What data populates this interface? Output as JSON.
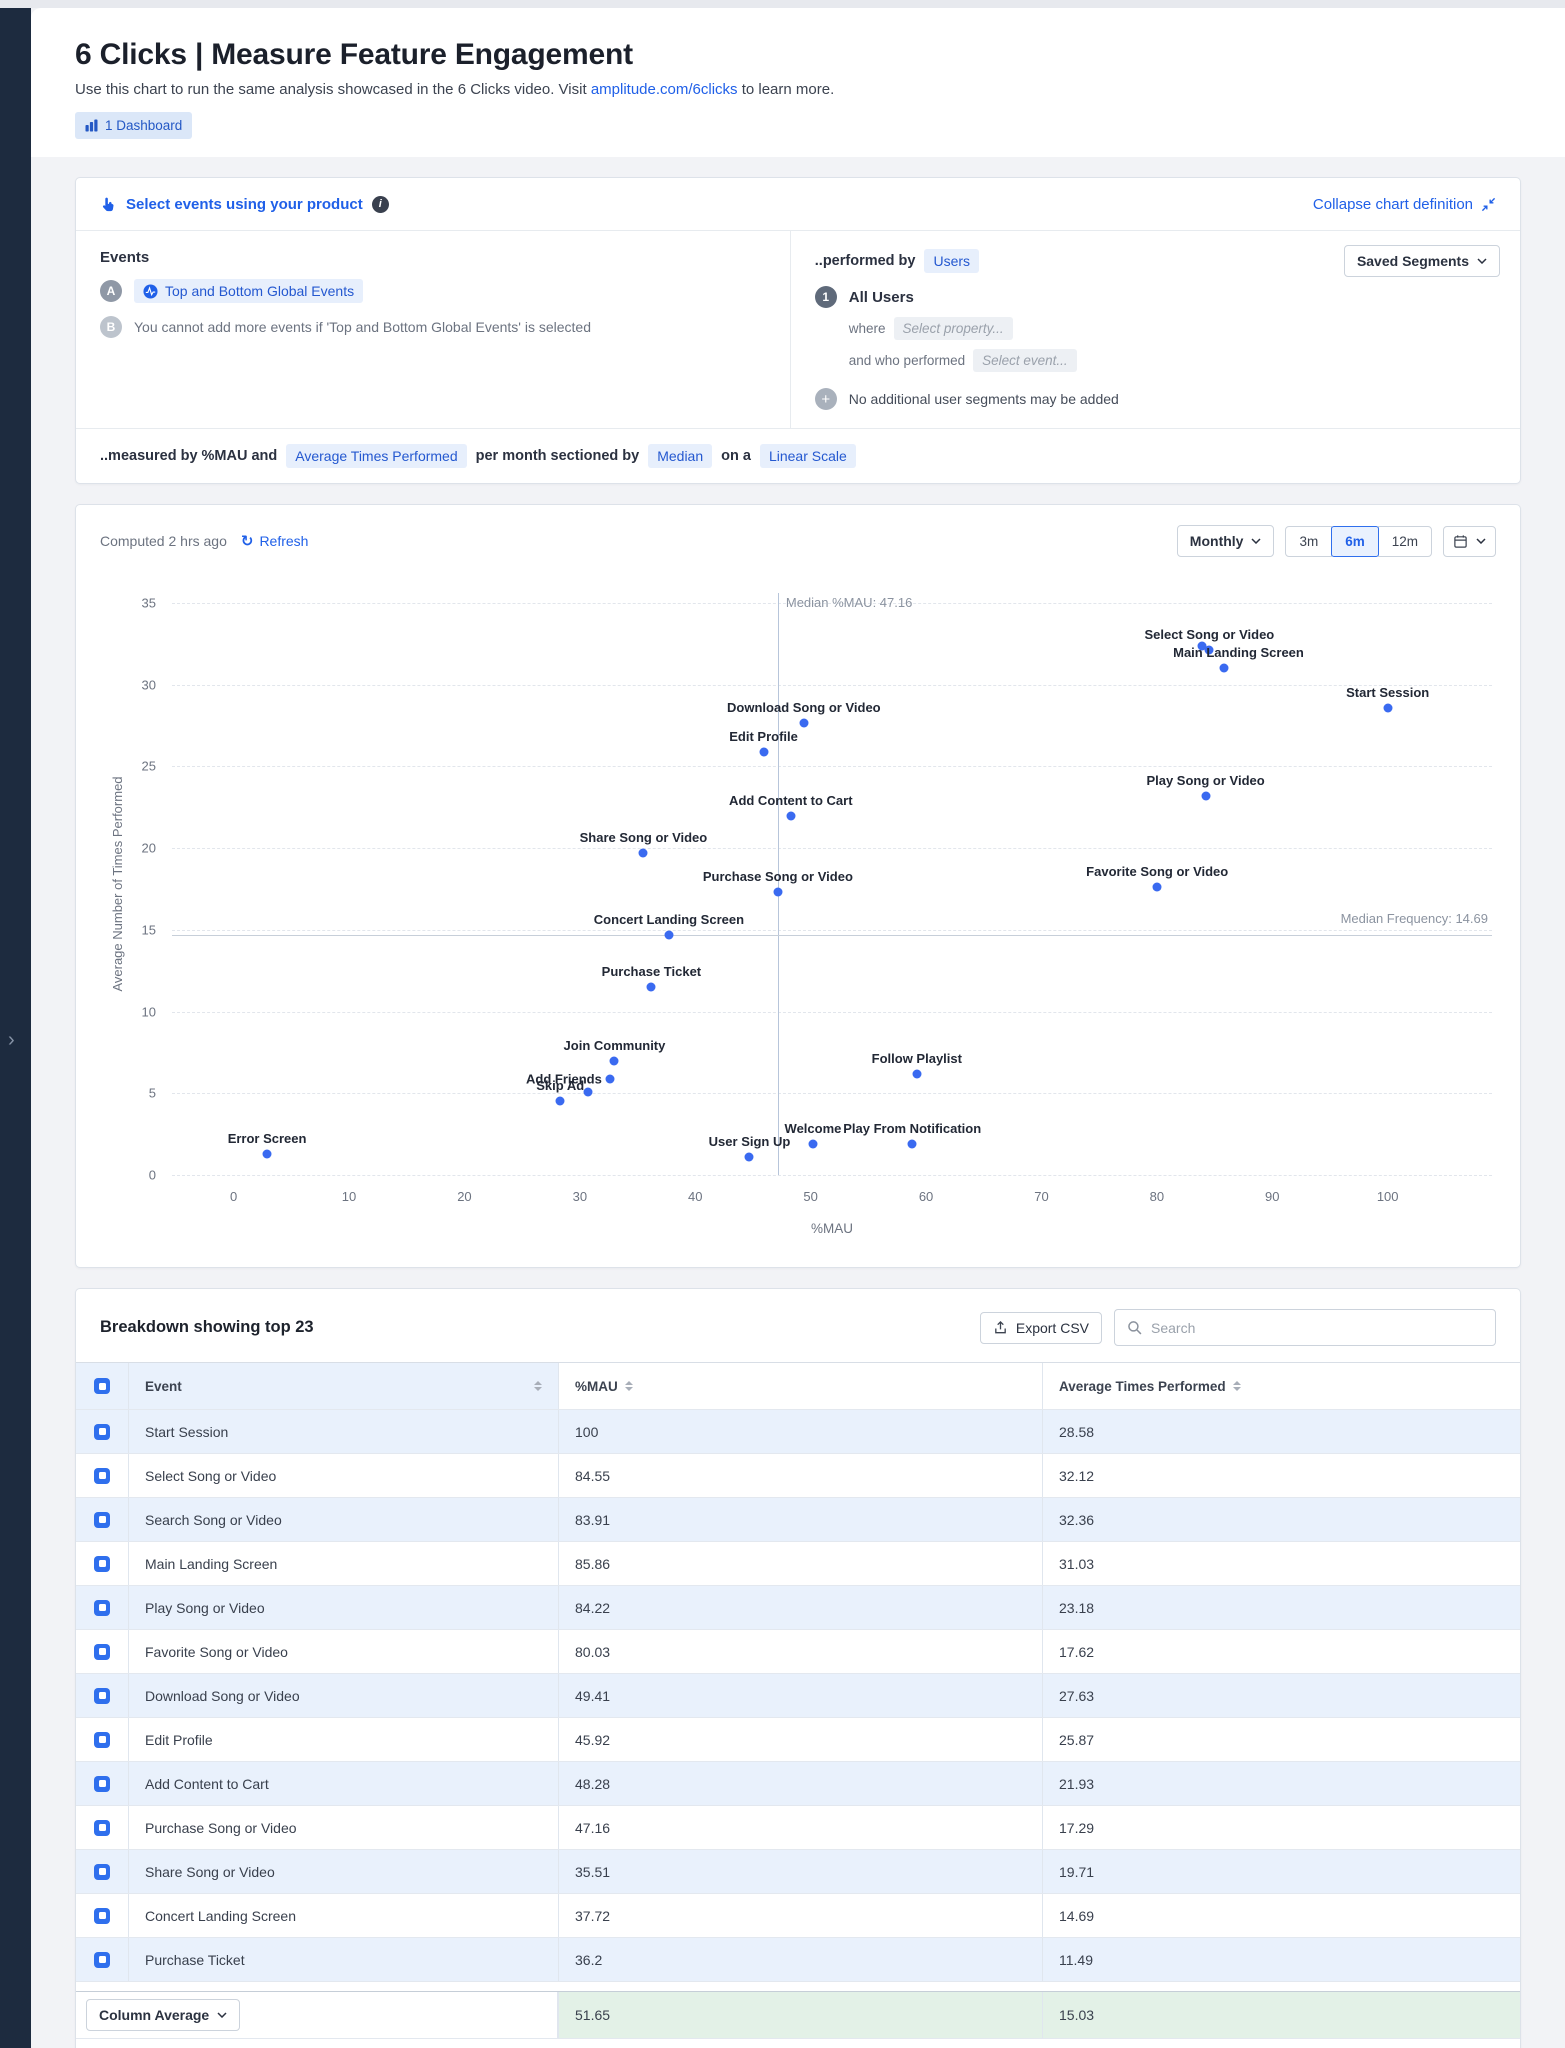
{
  "icons": {
    "sidebar_chevron": "›",
    "refresh": "↻",
    "info": "i",
    "add_segment": "+"
  },
  "page": {
    "title": "6 Clicks | Measure Feature Engagement",
    "subtitle_prefix": "Use this chart to run the same analysis showcased in the 6 Clicks video. Visit",
    "subtitle_link": "amplitude.com/6clicks",
    "subtitle_suffix": "to learn more.",
    "dashboard_badge": "1 Dashboard"
  },
  "definition": {
    "select_events_label": "Select events using your product",
    "collapse_label": "Collapse chart definition",
    "events": {
      "heading": "Events",
      "row_a_badge": "A",
      "row_a_chip": "Top and Bottom Global Events",
      "row_b_badge": "B",
      "row_b_text": "You cannot add more events if 'Top and Bottom Global Events' is selected"
    },
    "performed_by": {
      "prefix": "..performed by",
      "chip": "Users",
      "saved_segments_button": "Saved Segments",
      "segment_number": "1",
      "segment_name": "All Users",
      "where_label": "where",
      "where_placeholder": "Select property...",
      "and_who_label": "and who performed",
      "event_placeholder": "Select event...",
      "no_additional_text": "No additional user segments may be added"
    },
    "measured_by": {
      "part1": "..measured by %MAU and",
      "chip1": "Average Times Performed",
      "part2": "per month sectioned by",
      "chip2": "Median",
      "part3": "on a",
      "chip3": "Linear Scale"
    }
  },
  "chart_card": {
    "computed_label": "Computed 2 hrs ago",
    "refresh_label": "Refresh",
    "interval_button": "Monthly",
    "range_options": [
      "3m",
      "6m",
      "12m"
    ],
    "selected_range": "6m"
  },
  "chart_data": {
    "type": "scatter",
    "xlabel": "%MAU",
    "ylabel": "Average Number of Times Performed",
    "xlim": [
      0,
      100
    ],
    "ylim": [
      0,
      35
    ],
    "x_ticks": [
      0,
      10,
      20,
      30,
      40,
      50,
      60,
      70,
      80,
      90,
      100
    ],
    "y_ticks": [
      0,
      5,
      10,
      15,
      20,
      25,
      30,
      35
    ],
    "grid": "horizontal-dashed",
    "median_x": {
      "label": "Median %MAU: 47.16",
      "value": 47.16
    },
    "median_y": {
      "label": "Median Frequency: 14.69",
      "value": 14.69
    },
    "points": [
      {
        "label": "Start Session",
        "x": 100,
        "y": 28.58
      },
      {
        "label": "Select Song or Video",
        "x": 84.55,
        "y": 32.12
      },
      {
        "label": "Search Song or Video",
        "x": 83.91,
        "y": 32.36,
        "show_label": false
      },
      {
        "label": "Main Landing Screen",
        "x": 85.86,
        "y": 31.03,
        "label_dx": 14
      },
      {
        "label": "Play Song or Video",
        "x": 84.22,
        "y": 23.18
      },
      {
        "label": "Favorite Song or Video",
        "x": 80.03,
        "y": 17.62
      },
      {
        "label": "Download Song or Video",
        "x": 49.41,
        "y": 27.63
      },
      {
        "label": "Edit Profile",
        "x": 45.92,
        "y": 25.87
      },
      {
        "label": "Add Content to Cart",
        "x": 48.28,
        "y": 21.93
      },
      {
        "label": "Purchase Song or Video",
        "x": 47.16,
        "y": 17.29
      },
      {
        "label": "Share Song or Video",
        "x": 35.51,
        "y": 19.71
      },
      {
        "label": "Concert Landing Screen",
        "x": 37.72,
        "y": 14.69
      },
      {
        "label": "Purchase Ticket",
        "x": 36.2,
        "y": 11.49
      },
      {
        "label": "Join Community",
        "x": 33.0,
        "y": 7.0
      },
      {
        "label": "Add Friends",
        "x": 32.6,
        "y": 5.9,
        "label_side": "left"
      },
      {
        "label": "Skip Ad",
        "x": 28.3,
        "y": 4.5
      },
      {
        "label": "",
        "x": 30.7,
        "y": 5.1,
        "show_label": false
      },
      {
        "label": "Follow Playlist",
        "x": 59.2,
        "y": 6.2
      },
      {
        "label": "Error Screen",
        "x": 2.9,
        "y": 1.3
      },
      {
        "label": "User Sign Up",
        "x": 44.7,
        "y": 1.1
      },
      {
        "label": "Welcome",
        "x": 50.2,
        "y": 1.9
      },
      {
        "label": "Play From Notification",
        "x": 58.8,
        "y": 1.9
      }
    ]
  },
  "table": {
    "title": "Breakdown showing top 23",
    "export_label": "Export CSV",
    "search_placeholder": "Search",
    "columns": [
      "Event",
      "%MAU",
      "Average Times Performed"
    ],
    "rows": [
      {
        "event": "Start Session",
        "mau": "100",
        "avg": "28.58"
      },
      {
        "event": "Select Song or Video",
        "mau": "84.55",
        "avg": "32.12"
      },
      {
        "event": "Search Song or Video",
        "mau": "83.91",
        "avg": "32.36"
      },
      {
        "event": "Main Landing Screen",
        "mau": "85.86",
        "avg": "31.03"
      },
      {
        "event": "Play Song or Video",
        "mau": "84.22",
        "avg": "23.18"
      },
      {
        "event": "Favorite Song or Video",
        "mau": "80.03",
        "avg": "17.62"
      },
      {
        "event": "Download Song or Video",
        "mau": "49.41",
        "avg": "27.63"
      },
      {
        "event": "Edit Profile",
        "mau": "45.92",
        "avg": "25.87"
      },
      {
        "event": "Add Content to Cart",
        "mau": "48.28",
        "avg": "21.93"
      },
      {
        "event": "Purchase Song or Video",
        "mau": "47.16",
        "avg": "17.29"
      },
      {
        "event": "Share Song or Video",
        "mau": "35.51",
        "avg": "19.71"
      },
      {
        "event": "Concert Landing Screen",
        "mau": "37.72",
        "avg": "14.69"
      },
      {
        "event": "Purchase Ticket",
        "mau": "36.2",
        "avg": "11.49"
      }
    ],
    "footer": {
      "label": "Column Average",
      "mau": "51.65",
      "avg": "15.03"
    }
  }
}
